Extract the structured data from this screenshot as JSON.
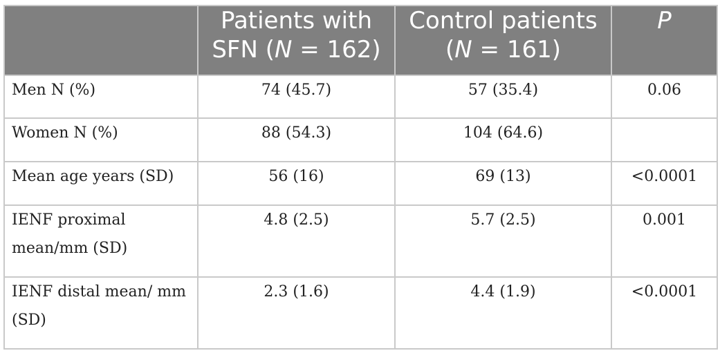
{
  "table": {
    "headers": {
      "col0": "",
      "col1_line1": "Patients with",
      "col1_line2_pre": "SFN (",
      "col1_line2_n": "N",
      "col1_line2_post": " = 162)",
      "col2_line1": "Control patients",
      "col2_line2_pre": "(",
      "col2_line2_n": "N",
      "col2_line2_post": " = 161)",
      "col3": "P"
    },
    "rows": [
      {
        "label": "Men N (%)",
        "sfn": "74 (45.7)",
        "control": "57 (35.4)",
        "p": "0.06"
      },
      {
        "label": "Women N (%)",
        "sfn": "88 (54.3)",
        "control": "104 (64.6)",
        "p": ""
      },
      {
        "label": "Mean age years (SD)",
        "sfn": "56 (16)",
        "control": "69 (13)",
        "p": "<0.0001"
      },
      {
        "label": "IENF proximal mean/mm (SD)",
        "sfn": "4.8 (2.5)",
        "control": "5.7 (2.5)",
        "p": "0.001"
      },
      {
        "label": "IENF distal mean/ mm (SD)",
        "sfn": "2.3 (1.6)",
        "control": "4.4 (1.9)",
        "p": "<0.0001"
      }
    ]
  }
}
